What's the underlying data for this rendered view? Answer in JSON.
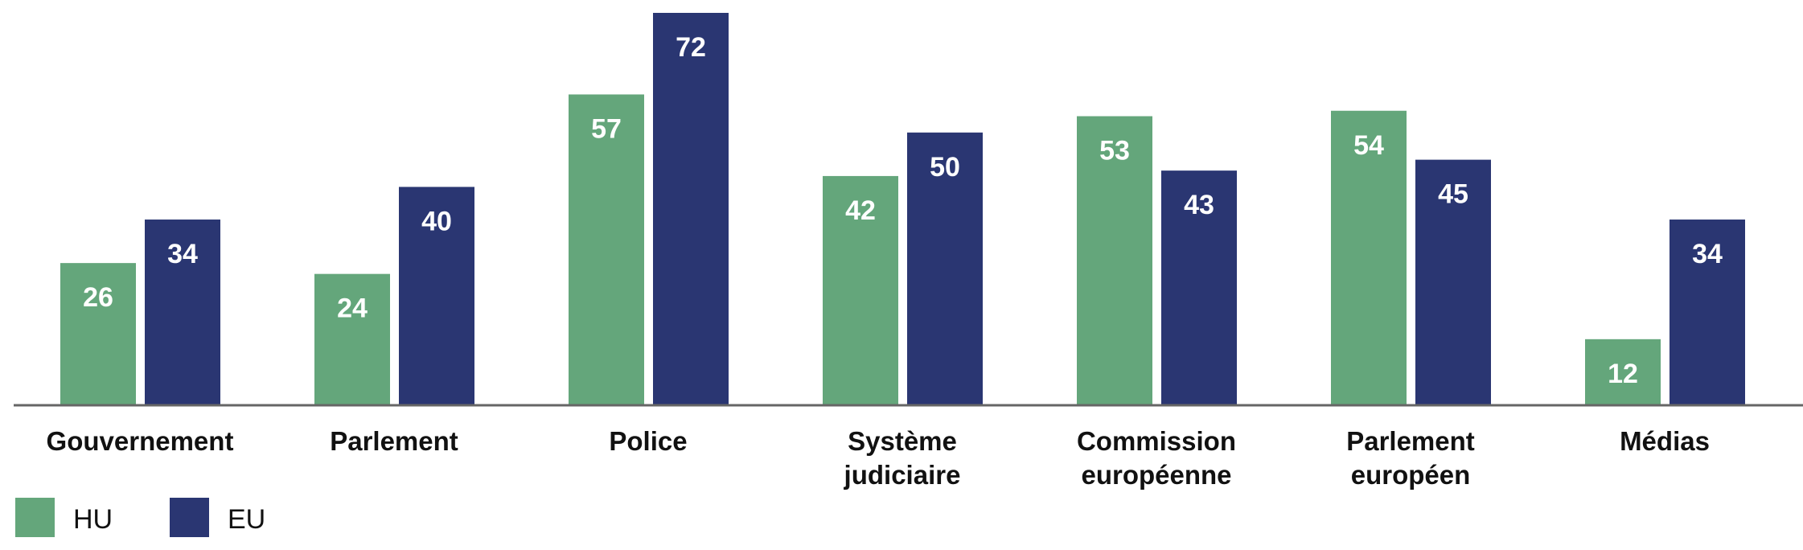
{
  "chart_data": {
    "type": "bar",
    "title": "",
    "xlabel": "",
    "ylabel": "",
    "ylim": [
      0,
      72
    ],
    "grid": false,
    "legend_position": "bottom-left",
    "categories": [
      [
        "Gouvernement"
      ],
      [
        "Parlement"
      ],
      [
        "Police"
      ],
      [
        "Système",
        "judiciaire"
      ],
      [
        "Commission",
        "européenne"
      ],
      [
        "Parlement",
        "européen"
      ],
      [
        "Médias"
      ]
    ],
    "series": [
      {
        "name": "HU",
        "color": "#64a67b",
        "values": [
          26,
          24,
          57,
          42,
          53,
          54,
          12
        ]
      },
      {
        "name": "EU",
        "color": "#2a3672",
        "values": [
          34,
          40,
          72,
          50,
          43,
          45,
          34
        ]
      }
    ]
  }
}
